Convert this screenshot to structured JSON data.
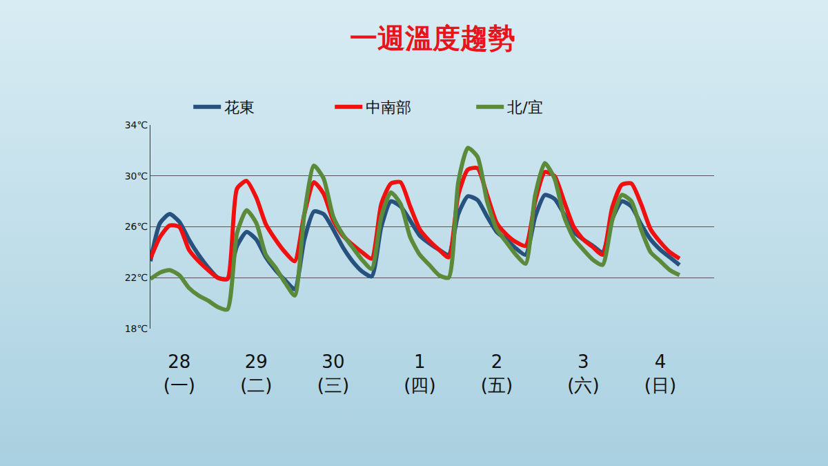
{
  "chart_data": {
    "type": "line",
    "title": "一週溫度趨勢",
    "categories": [
      null,
      null,
      null,
      "28 (一)",
      null,
      null,
      null,
      null,
      null,
      null,
      null,
      "29 (二)",
      null,
      null,
      null,
      null,
      null,
      null,
      null,
      "30 (三)",
      null,
      null,
      null,
      null,
      null,
      null,
      null,
      null,
      "1 (四)",
      null,
      null,
      null,
      null,
      null,
      null,
      null,
      "2 (五)",
      null,
      null,
      null,
      null,
      null,
      null,
      null,
      null,
      "3 (六)",
      null,
      null,
      null,
      null,
      null,
      null,
      null,
      "4 (日)",
      null,
      null
    ],
    "series": [
      {
        "name": "花東",
        "color": "#27527e",
        "values": [
          23.3,
          26.3,
          27.0,
          26.4,
          25.0,
          23.8,
          22.8,
          22.0,
          21.9,
          24.5,
          25.6,
          25.0,
          23.6,
          22.6,
          21.8,
          21.1,
          25.0,
          27.2,
          27.0,
          25.8,
          24.4,
          23.3,
          22.5,
          22.1,
          26.0,
          28.0,
          27.6,
          26.5,
          25.3,
          24.7,
          24.2,
          23.8,
          27.0,
          28.4,
          28.1,
          26.8,
          25.6,
          25.0,
          24.3,
          23.8,
          26.8,
          28.5,
          28.2,
          27.0,
          25.6,
          25.0,
          24.5,
          24.0,
          26.6,
          28.0,
          27.6,
          26.2,
          25.0,
          24.2,
          23.6,
          23.0
        ]
      },
      {
        "name": "中南部",
        "color": "#f01010",
        "values": [
          23.5,
          25.2,
          26.1,
          26.0,
          24.2,
          23.3,
          22.6,
          22.0,
          21.9,
          29.0,
          29.6,
          28.3,
          26.2,
          25.0,
          24.0,
          23.3,
          27.0,
          29.5,
          28.6,
          26.5,
          25.3,
          24.6,
          24.0,
          23.5,
          27.8,
          29.4,
          29.5,
          27.6,
          25.8,
          24.9,
          24.2,
          23.6,
          28.5,
          30.5,
          30.6,
          28.5,
          26.3,
          25.4,
          24.8,
          24.5,
          28.0,
          30.3,
          30.0,
          28.0,
          26.0,
          25.0,
          24.4,
          23.8,
          27.5,
          29.3,
          29.4,
          27.8,
          25.8,
          24.8,
          24.0,
          23.5
        ]
      },
      {
        "name": "北/宜",
        "color": "#5a8a3a",
        "values": [
          21.9,
          22.4,
          22.6,
          22.2,
          21.2,
          20.6,
          20.2,
          19.7,
          19.5,
          25.5,
          27.3,
          26.3,
          23.8,
          22.8,
          21.6,
          20.6,
          27.0,
          30.8,
          29.8,
          26.8,
          25.4,
          24.4,
          23.4,
          22.7,
          26.8,
          28.7,
          27.8,
          25.2,
          23.8,
          23.0,
          22.2,
          22.0,
          29.5,
          32.2,
          31.5,
          28.0,
          25.8,
          24.8,
          23.8,
          23.1,
          28.5,
          31.0,
          29.8,
          26.8,
          25.1,
          24.2,
          23.4,
          23.0,
          26.5,
          28.5,
          28.0,
          25.8,
          24.0,
          23.3,
          22.6,
          22.2
        ]
      }
    ],
    "ylim": [
      18,
      34
    ],
    "yticks": [
      {
        "value": 18,
        "label": "18℃"
      },
      {
        "value": 22,
        "label": "22℃"
      },
      {
        "value": 26,
        "label": "26℃"
      },
      {
        "value": 30,
        "label": "30℃"
      },
      {
        "value": 34,
        "label": "34℃"
      }
    ],
    "grid": true,
    "legend": "top"
  }
}
